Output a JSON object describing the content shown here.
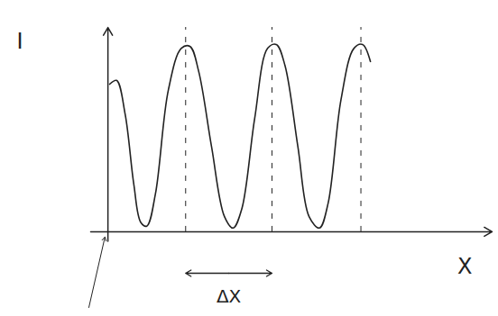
{
  "chart_data": {
    "type": "line",
    "x_label": "X",
    "y_label": "I",
    "x": [
      0.02,
      0.1,
      0.2,
      0.3,
      0.38,
      0.45,
      0.55,
      0.7,
      0.85,
      0.95,
      1.05,
      1.2,
      1.35,
      1.45,
      1.55,
      1.7,
      1.85,
      1.95,
      2.05,
      2.2,
      2.33,
      2.45,
      2.55,
      2.7,
      2.85,
      2.95,
      3.04
    ],
    "values": [
      0.78,
      0.8,
      0.62,
      0.25,
      0.05,
      0.03,
      0.2,
      0.75,
      0.97,
      0.98,
      0.85,
      0.45,
      0.08,
      0.02,
      0.12,
      0.6,
      0.97,
      0.99,
      0.88,
      0.45,
      0.08,
      0.02,
      0.15,
      0.7,
      0.97,
      0.99,
      0.9
    ],
    "color": "#222222",
    "line_style": "solid",
    "peaks": [
      0.9,
      1.9,
      2.93
    ],
    "spacing": {
      "from": 0.9,
      "to": 1.9,
      "label": "ΔX"
    },
    "xlim": [
      -0.2,
      4.45
    ],
    "ylim": [
      -0.4,
      1.08
    ],
    "xticks": [],
    "yticks": [],
    "tick_labels": false,
    "grid": false
  }
}
